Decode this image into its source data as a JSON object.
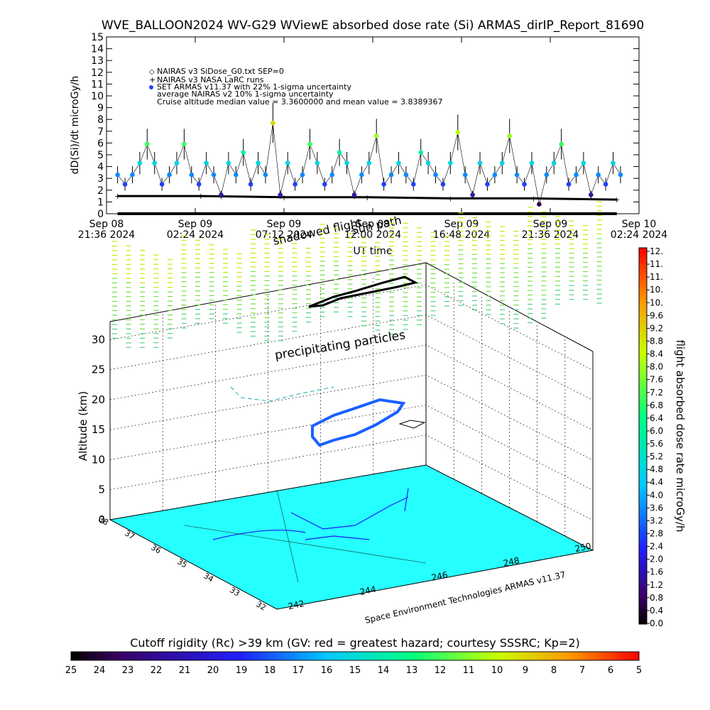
{
  "title": "WVE_BALLOON2024 WV-G29 WViewE absorbed dose rate (Si) ARMAS_dirIP_Report_81690",
  "chart_data": [
    {
      "type": "scatter",
      "ylabel": "dD(Si)/dt microGy/h",
      "xlabel": "UT time",
      "ylim": [
        0,
        15
      ],
      "y_ticks": [
        "0",
        "1",
        "2",
        "3",
        "4",
        "5",
        "6",
        "7",
        "8",
        "9",
        "10",
        "11",
        "12",
        "13",
        "14",
        "15"
      ],
      "x_ticks": [
        {
          "date": "Sep 08",
          "time": "21:36 2024"
        },
        {
          "date": "Sep 09",
          "time": "02:24 2024"
        },
        {
          "date": "Sep 09",
          "time": "07:12 2024"
        },
        {
          "date": "Sep 09",
          "time": "12:00 2024"
        },
        {
          "date": "Sep 09",
          "time": "16:48 2024"
        },
        {
          "date": "Sep 09",
          "time": "21:36 2024"
        },
        {
          "date": "Sep 10",
          "time": "02:24 2024"
        }
      ],
      "legend": [
        "NAIRAS v3 SiDose_G0.txt SEP=0",
        "NAIRAS v3 NASA LaRC runs",
        "SET ARMAS v11.37 with 22% 1-sigma uncertainty",
        "average NAIRAS v2 10% 1-sigma uncertainty",
        "Cruise altitude median value = 3.3600000 and mean value = 3.8389367"
      ],
      "legend_placement": "top-left",
      "overlay_labels": [
        "shadowed flight",
        "Sun path"
      ],
      "median": 3.36,
      "mean": 3.8389367,
      "series": [
        {
          "name": "NAIRAS v3 SiDose_G0.txt SEP=0",
          "x_hours": [
            0.6,
            2.9,
            5.1,
            7.4,
            9.6,
            11.9,
            14.1,
            16.4,
            18.6,
            20.9,
            23.1,
            25.4,
            27.6
          ],
          "values": [
            0,
            0,
            0,
            0,
            0,
            0,
            0,
            0,
            0,
            0,
            0,
            0,
            0
          ]
        },
        {
          "name": "NAIRAS v3 NASA LaRC runs",
          "x_hours": [
            0.6,
            5.1,
            9.6,
            14.1,
            18.6,
            23.1,
            27.6
          ],
          "values": [
            1.5,
            1.5,
            1.4,
            1.4,
            1.3,
            1.3,
            1.2
          ]
        },
        {
          "name": "SET ARMAS v11.37 with 22% 1-sigma uncertainty",
          "x_hours": [
            0.6,
            1.0,
            1.4,
            1.8,
            2.2,
            2.6,
            3.0,
            3.4,
            3.8,
            4.2,
            4.6,
            5.0,
            5.4,
            5.8,
            6.2,
            6.6,
            7.0,
            7.4,
            7.8,
            8.2,
            8.6,
            9.0,
            9.4,
            9.8,
            10.2,
            10.6,
            11.0,
            11.4,
            11.8,
            12.2,
            12.6,
            13.0,
            13.4,
            13.8,
            14.2,
            14.6,
            15.0,
            15.4,
            15.8,
            16.2,
            16.6,
            17.0,
            17.4,
            17.8,
            18.2,
            18.6,
            19.0,
            19.4,
            19.8,
            20.2,
            20.6,
            21.0,
            21.4,
            21.8,
            22.2,
            22.6,
            23.0,
            23.4,
            23.8,
            24.2,
            24.6,
            25.0,
            25.4,
            25.8,
            26.2,
            26.6,
            27.0,
            27.4,
            27.8
          ],
          "values": [
            3.3,
            2.5,
            3.3,
            4.3,
            5.9,
            4.3,
            2.5,
            3.3,
            4.3,
            5.9,
            3.3,
            2.5,
            4.3,
            3.3,
            1.6,
            4.3,
            3.3,
            5.2,
            2.5,
            4.3,
            3.3,
            7.7,
            1.6,
            4.3,
            2.5,
            3.3,
            5.9,
            4.3,
            2.5,
            3.3,
            5.2,
            4.3,
            1.6,
            3.3,
            4.3,
            6.6,
            2.5,
            3.3,
            4.3,
            3.3,
            2.5,
            5.2,
            4.3,
            3.3,
            2.5,
            4.3,
            6.9,
            3.3,
            1.6,
            4.3,
            2.5,
            3.3,
            4.3,
            6.6,
            3.3,
            2.5,
            4.3,
            0.8,
            3.3,
            4.3,
            5.9,
            2.5,
            3.3,
            4.3,
            1.6,
            3.3,
            2.5,
            4.3,
            3.3
          ]
        }
      ]
    },
    {
      "type": "scatter",
      "zlabel": "Altitude (km)",
      "z_ticks": [
        "0",
        "5",
        "10",
        "15",
        "20",
        "25",
        "30"
      ],
      "y_ticks": [
        "38",
        "37",
        "36",
        "35",
        "34",
        "33",
        "32"
      ],
      "x_ticks": [
        "242",
        "244",
        "246",
        "248",
        "250"
      ],
      "zlim": [
        0,
        33
      ],
      "annotations": [
        "precipitating particles",
        "Space Environment Technologies ARMAS v11.37"
      ],
      "colorbar": {
        "label": "flight absorbed dose rate microGy/h",
        "ticks": [
          "12.",
          "11.",
          "11.",
          "10.",
          "10.",
          "9.6",
          "9.2",
          "8.8",
          "8.4",
          "8.0",
          "7.6",
          "7.2",
          "6.8",
          "6.4",
          "6.0",
          "5.6",
          "5.2",
          "4.8",
          "4.4",
          "4.0",
          "3.6",
          "3.2",
          "2.8",
          "2.4",
          "2.0",
          "1.6",
          "1.2",
          "0.8",
          "0.4",
          "0.0"
        ]
      },
      "flight_track": {
        "lon": [
          242.6,
          243.0,
          243.6,
          244.2,
          244.8,
          245.2,
          245.6,
          245.2,
          244.4,
          243.6,
          243.0,
          242.7,
          242.6
        ],
        "lat": [
          36.3,
          36.5,
          36.6,
          36.5,
          36.4,
          36.3,
          36.1,
          35.9,
          35.9,
          36.0,
          36.0,
          36.1,
          36.3
        ],
        "alt": [
          16.0,
          16.6,
          17.2,
          17.6,
          18.4,
          19.4,
          21.0,
          21.5,
          21.2,
          20.6,
          19.6,
          18.0,
          16.0
        ]
      }
    },
    {
      "type": "heatmap",
      "title": "Cutoff rigidity (Rc) >39 km (GV: red = greatest hazard; courtesy SSSRC; Kp=2)",
      "ticks": [
        "25",
        "24",
        "23",
        "22",
        "21",
        "20",
        "19",
        "18",
        "17",
        "16",
        "15",
        "14",
        "13",
        "12",
        "11",
        "10",
        "9",
        "8",
        "7",
        "6",
        "5"
      ]
    }
  ]
}
